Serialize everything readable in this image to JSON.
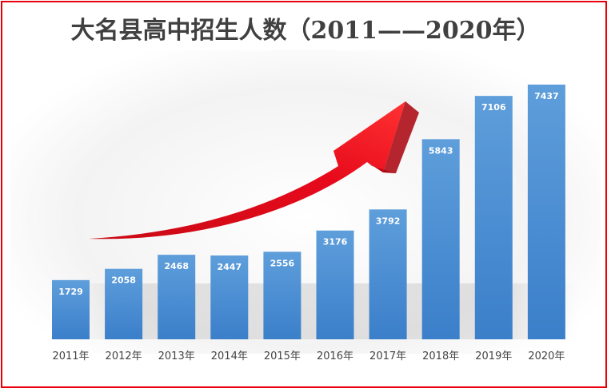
{
  "chart_data": {
    "type": "bar",
    "title": "大名县高中招生人数（2011——2020年）",
    "categories": [
      "2011年",
      "2012年",
      "2013年",
      "2014年",
      "2015年",
      "2016年",
      "2017年",
      "2018年",
      "2019年",
      "2020年"
    ],
    "values": [
      1729,
      2058,
      2468,
      2447,
      2556,
      3176,
      3792,
      5843,
      7106,
      7437
    ],
    "ylim": [
      0,
      8000
    ],
    "grid": false,
    "legend": "none",
    "colors": {
      "bar_top": "#5b9bd5",
      "bar_bottom": "#3a7fcc",
      "arrow": "#e3000f",
      "frame": "#e8000b"
    }
  }
}
